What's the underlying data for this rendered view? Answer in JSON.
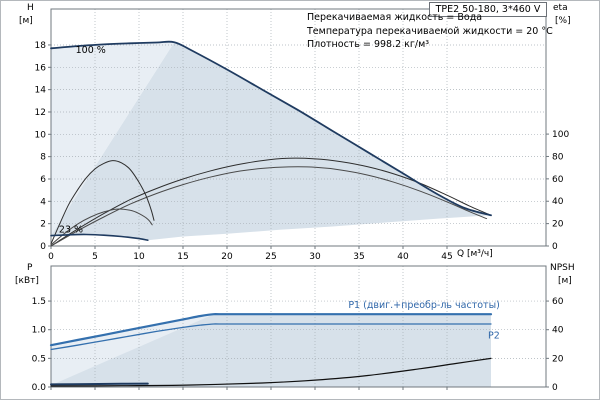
{
  "header": {
    "title_box": "TPE2 50-180, 3*460 V",
    "info_lines": [
      "Перекачиваемая жидкость = Вода",
      "Температура перекачиваемой жидкости = 20 °C",
      "Плотность = 998.2 кг/м³"
    ]
  },
  "colors": {
    "text": "#000000",
    "grid": "#a9b0b6",
    "frame": "#70787f",
    "shade_main": "#d7e1ea",
    "shade_light": "#e8eef4",
    "curve_speed": "#1f3b60",
    "curve_eta": "#2e2e2e",
    "curve_eta2": "#4a4a4a",
    "power_blue": "#3470ae",
    "label_blue": "#2f66a8",
    "npsh_black": "#101010"
  },
  "chart_data": [
    {
      "id": "qh",
      "type": "line",
      "title": "TPE2 50-180, 3*460 V",
      "axes": {
        "left_title": [
          "H",
          "[м]"
        ],
        "right_title": [
          "eta",
          "[%]"
        ],
        "x_title": "Q [м³/ч]",
        "xlim": [
          0,
          56.25
        ],
        "ylim": [
          0,
          21.22
        ],
        "x_ticks": [
          0,
          5,
          10,
          15,
          20,
          25,
          30,
          35,
          40,
          45
        ],
        "x_tick_labels": true,
        "y_ticks_left": {
          "values": [
            0,
            2,
            4,
            6,
            8,
            10,
            12,
            14,
            16,
            18
          ]
        },
        "y_ticks_right": {
          "values": [
            0,
            20,
            40,
            60,
            80,
            100
          ],
          "scale_to_left": 0.1002
        },
        "grid": true
      },
      "regions": [
        {
          "name": "operating-envelope-main",
          "color_key": "shade_main",
          "points": [
            [
              0,
              0.93
            ],
            [
              14,
              18.25
            ],
            [
              16,
              17.5
            ],
            [
              20,
              15.8
            ],
            [
              24,
              14.0
            ],
            [
              28,
              12.2
            ],
            [
              32,
              10.3
            ],
            [
              36,
              8.4
            ],
            [
              40,
              6.5
            ],
            [
              44,
              4.6
            ],
            [
              47,
              3.4
            ],
            [
              50,
              2.75
            ],
            [
              44,
              2.45
            ],
            [
              38,
              2.1
            ],
            [
              32,
              1.75
            ],
            [
              26,
              1.45
            ],
            [
              20,
              1.1
            ],
            [
              15,
              0.85
            ],
            [
              11,
              0.52
            ],
            [
              10,
              0.66
            ],
            [
              8,
              0.85
            ],
            [
              6,
              0.97
            ],
            [
              4,
              1.03
            ],
            [
              2,
              1.0
            ]
          ]
        },
        {
          "name": "operating-envelope-upper-left",
          "color_key": "shade_light",
          "points": [
            [
              0,
              0.93
            ],
            [
              0,
              17.7
            ],
            [
              3,
              17.9
            ],
            [
              6,
              18.05
            ],
            [
              9,
              18.15
            ],
            [
              12,
              18.22
            ],
            [
              14,
              18.25
            ]
          ]
        }
      ],
      "series": [
        {
          "name": "eta-curve-full-speed-a",
          "color_key": "curve_eta",
          "width": 1,
          "points": [
            [
              0,
              0
            ],
            [
              3,
              1.5
            ],
            [
              6,
              2.9
            ],
            [
              9,
              4.15
            ],
            [
              12,
              5.15
            ],
            [
              15,
              6.0
            ],
            [
              18,
              6.7
            ],
            [
              21,
              7.25
            ],
            [
              24,
              7.65
            ],
            [
              27,
              7.85
            ],
            [
              30,
              7.8
            ],
            [
              33,
              7.55
            ],
            [
              36,
              7.1
            ],
            [
              39,
              6.45
            ],
            [
              42,
              5.6
            ],
            [
              45,
              4.55
            ],
            [
              47.5,
              3.6
            ],
            [
              50,
              2.75
            ]
          ]
        },
        {
          "name": "eta-curve-full-speed-b",
          "color_key": "curve_eta2",
          "width": 1,
          "points": [
            [
              0,
              0
            ],
            [
              3,
              1.35
            ],
            [
              6,
              2.6
            ],
            [
              9,
              3.75
            ],
            [
              12,
              4.7
            ],
            [
              15,
              5.5
            ],
            [
              18,
              6.15
            ],
            [
              21,
              6.65
            ],
            [
              24,
              6.95
            ],
            [
              27,
              7.08
            ],
            [
              30,
              7.05
            ],
            [
              33,
              6.8
            ],
            [
              36,
              6.35
            ],
            [
              39,
              5.7
            ],
            [
              42,
              4.9
            ],
            [
              45,
              3.95
            ],
            [
              47.5,
              3.1
            ],
            [
              49.5,
              2.45
            ]
          ]
        },
        {
          "name": "eta-curve-min-speed-tall",
          "color_key": "curve_eta",
          "width": 1,
          "points": [
            [
              0,
              0.2
            ],
            [
              1,
              2.0
            ],
            [
              2,
              3.7
            ],
            [
              3,
              5.0
            ],
            [
              4,
              6.1
            ],
            [
              5,
              6.9
            ],
            [
              6,
              7.4
            ],
            [
              7,
              7.65
            ],
            [
              8,
              7.45
            ],
            [
              9,
              6.85
            ],
            [
              10,
              5.7
            ],
            [
              10.8,
              4.5
            ],
            [
              11.4,
              3.2
            ],
            [
              11.7,
              2.3
            ]
          ]
        },
        {
          "name": "eta-curve-min-speed-small",
          "color_key": "curve_eta2",
          "width": 1,
          "points": [
            [
              0,
              0.1
            ],
            [
              1.5,
              1.1
            ],
            [
              3,
              1.95
            ],
            [
              4.5,
              2.6
            ],
            [
              6,
              3.05
            ],
            [
              7.5,
              3.3
            ],
            [
              9,
              3.2
            ],
            [
              10,
              2.9
            ],
            [
              11,
              2.4
            ],
            [
              11.5,
              1.9
            ]
          ]
        },
        {
          "name": "qh-curve-100pct",
          "color_key": "curve_speed",
          "width": 1.8,
          "points": [
            [
              0,
              17.7
            ],
            [
              3,
              17.9
            ],
            [
              6,
              18.05
            ],
            [
              9,
              18.15
            ],
            [
              12,
              18.22
            ],
            [
              14,
              18.25
            ],
            [
              16,
              17.5
            ],
            [
              20,
              15.8
            ],
            [
              24,
              14.0
            ],
            [
              28,
              12.2
            ],
            [
              32,
              10.3
            ],
            [
              36,
              8.4
            ],
            [
              40,
              6.5
            ],
            [
              44,
              4.6
            ],
            [
              47,
              3.4
            ],
            [
              50,
              2.75
            ]
          ]
        },
        {
          "name": "qh-curve-23pct",
          "color_key": "curve_speed",
          "width": 1.6,
          "points": [
            [
              0,
              0.93
            ],
            [
              2,
              1.0
            ],
            [
              4,
              1.03
            ],
            [
              6,
              0.97
            ],
            [
              8,
              0.85
            ],
            [
              10,
              0.66
            ],
            [
              11,
              0.52
            ]
          ]
        }
      ],
      "annotations": [
        {
          "name": "label-100pct",
          "text": "100 %",
          "x": 2.8,
          "y": 17.3,
          "anchor": "start",
          "color_key": "text"
        },
        {
          "name": "label-23pct",
          "text": "23 %",
          "x": 0.9,
          "y": 1.2,
          "anchor": "start",
          "color_key": "text"
        }
      ]
    },
    {
      "id": "pq",
      "type": "line",
      "title": "Power and NPSH curves",
      "axes": {
        "left_title": [
          "P",
          "[кВт]"
        ],
        "right_title": [
          "NPSH",
          "[м]"
        ],
        "x_title": "",
        "xlim": [
          0,
          56.25
        ],
        "ylim": [
          0,
          2.112
        ],
        "x_ticks": [
          0,
          5,
          10,
          15,
          20,
          25,
          30,
          35,
          40,
          45
        ],
        "x_tick_labels": false,
        "y_ticks_left": {
          "values": [
            0,
            0.5,
            1,
            1.5
          ],
          "labels": [
            "0.0",
            "0.5",
            "1.0",
            "1.5"
          ]
        },
        "y_ticks_right": {
          "values": [
            0,
            20,
            40,
            60
          ],
          "scale_to_left": 0.025
        },
        "grid": true
      },
      "regions": [
        {
          "name": "power-envelope-main",
          "color_key": "shade_main",
          "points": [
            [
              0,
              0
            ],
            [
              0,
              0.73
            ],
            [
              3,
              0.82
            ],
            [
              6,
              0.91
            ],
            [
              9,
              1.0
            ],
            [
              12,
              1.09
            ],
            [
              15,
              1.18
            ],
            [
              17,
              1.24
            ],
            [
              18.5,
              1.27
            ],
            [
              50,
              1.27
            ],
            [
              50,
              0
            ]
          ]
        },
        {
          "name": "power-envelope-upper-left",
          "color_key": "shade_light",
          "points": [
            [
              0,
              0.03
            ],
            [
              0,
              0.73
            ],
            [
              3,
              0.82
            ],
            [
              6,
              0.91
            ],
            [
              9,
              1.0
            ],
            [
              12,
              1.09
            ],
            [
              15,
              1.18
            ],
            [
              17,
              1.24
            ],
            [
              18.5,
              1.27
            ]
          ]
        }
      ],
      "series": [
        {
          "name": "p1-curve",
          "color_key": "power_blue",
          "width": 2.2,
          "points": [
            [
              0,
              0.73
            ],
            [
              3,
              0.82
            ],
            [
              6,
              0.91
            ],
            [
              9,
              1.0
            ],
            [
              12,
              1.09
            ],
            [
              15,
              1.18
            ],
            [
              17,
              1.24
            ],
            [
              18.5,
              1.27
            ],
            [
              20,
              1.27
            ],
            [
              30,
              1.27
            ],
            [
              40,
              1.27
            ],
            [
              50,
              1.27
            ]
          ]
        },
        {
          "name": "p2-curve",
          "color_key": "power_blue",
          "width": 1.3,
          "points": [
            [
              0,
              0.655
            ],
            [
              3,
              0.73
            ],
            [
              6,
              0.81
            ],
            [
              9,
              0.89
            ],
            [
              12,
              0.97
            ],
            [
              15,
              1.04
            ],
            [
              17,
              1.08
            ],
            [
              18.5,
              1.1
            ],
            [
              20,
              1.1
            ],
            [
              30,
              1.1
            ],
            [
              40,
              1.1
            ],
            [
              50,
              1.1
            ]
          ]
        },
        {
          "name": "p-min-speed-curve",
          "color_key": "curve_speed",
          "width": 2,
          "points": [
            [
              0,
              0.045
            ],
            [
              4,
              0.05
            ],
            [
              8,
              0.055
            ],
            [
              11,
              0.06
            ]
          ]
        },
        {
          "name": "npsh-curve",
          "color_key": "npsh_black",
          "width": 1.2,
          "points": [
            [
              0,
              0.018
            ],
            [
              8,
              0.022
            ],
            [
              16,
              0.035
            ],
            [
              24,
              0.07
            ],
            [
              30,
              0.12
            ],
            [
              36,
              0.2
            ],
            [
              42,
              0.32
            ],
            [
              46,
              0.41
            ],
            [
              50,
              0.5
            ]
          ]
        }
      ],
      "annotations": [
        {
          "name": "label-p1",
          "text": "P1 (двиг.+преобр-ль частоты)",
          "x": 51,
          "y": 1.38,
          "anchor": "end",
          "color_key": "label_blue"
        },
        {
          "name": "label-p2",
          "text": "P2",
          "x": 51,
          "y": 0.85,
          "anchor": "end",
          "color_key": "label_blue"
        }
      ]
    }
  ]
}
